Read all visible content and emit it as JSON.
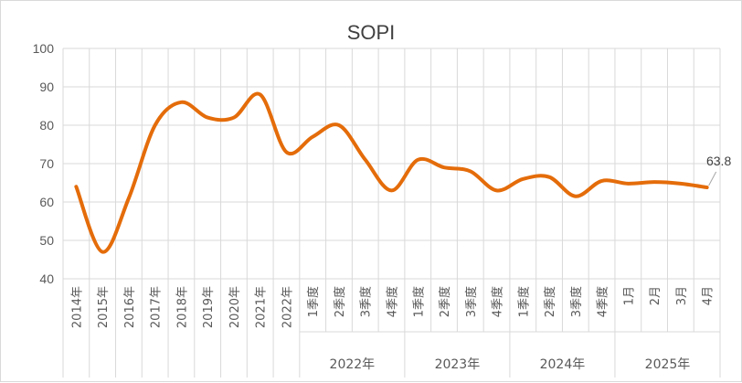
{
  "chart_data": {
    "type": "line",
    "title": "SOPI",
    "xlabel": "",
    "ylabel": "",
    "ylim": [
      40,
      100
    ],
    "yticks": [
      40,
      50,
      60,
      70,
      80,
      90,
      100
    ],
    "grid": true,
    "categories": [
      "2014年",
      "2015年",
      "2016年",
      "2017年",
      "2018年",
      "2019年",
      "2020年",
      "2021年",
      "2022年",
      "1季度",
      "2季度",
      "3季度",
      "4季度",
      "1季度",
      "2季度",
      "3季度",
      "4季度",
      "1季度",
      "2季度",
      "3季度",
      "4季度",
      "1月",
      "2月",
      "3月",
      "4月"
    ],
    "category_groups": [
      {
        "label": "2022年",
        "start": 9,
        "end": 12
      },
      {
        "label": "2023年",
        "start": 13,
        "end": 16
      },
      {
        "label": "2024年",
        "start": 17,
        "end": 20
      },
      {
        "label": "2025年",
        "start": 21,
        "end": 24
      }
    ],
    "series": [
      {
        "name": "SOPI",
        "color": "#E46C0A",
        "values": [
          64,
          47,
          61,
          80,
          86,
          82,
          82,
          88,
          73,
          77,
          80,
          71,
          63,
          71,
          69,
          68,
          63,
          66,
          66.5,
          61.5,
          65.5,
          64.8,
          65.2,
          64.8,
          63.8
        ]
      }
    ],
    "data_labels": [
      {
        "index": 24,
        "text": "63.8"
      }
    ]
  }
}
